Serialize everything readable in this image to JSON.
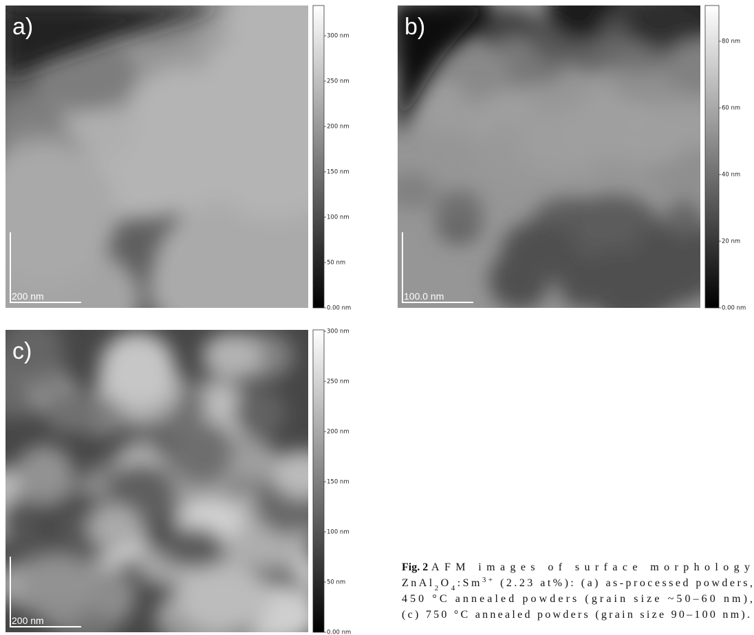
{
  "panels": [
    {
      "label": "a)",
      "scale_bar": "200 nm",
      "colorbar_ticks": [
        "300 nm",
        "250 nm",
        "200 nm",
        "150 nm",
        "100 nm",
        "50 nm",
        "0.00 nm"
      ]
    },
    {
      "label": "b)",
      "scale_bar": "100.0 nm",
      "colorbar_ticks": [
        "80 nm",
        "60 nm",
        "40 nm",
        "20 nm",
        "0.00 nm"
      ]
    },
    {
      "label": "c)",
      "scale_bar": "200 nm",
      "colorbar_ticks": [
        "300 nm",
        "250 nm",
        "200 nm",
        "150 nm",
        "100 nm",
        "50 nm",
        "0.00 nm"
      ]
    }
  ],
  "caption": {
    "label": "Fig. 2",
    "lines": [
      [
        "AFM images of surface morphology"
      ],
      [
        "ZnAl",
        "2",
        "O",
        "4",
        ":Sm",
        "3+",
        " (2.23 at%): (a) as-processed powders,"
      ],
      [
        "450 °C annealed powders (grain size ~50–60 nm),"
      ],
      [
        "(c) 750 °C annealed powders (grain size 90–100 nm)."
      ]
    ]
  }
}
